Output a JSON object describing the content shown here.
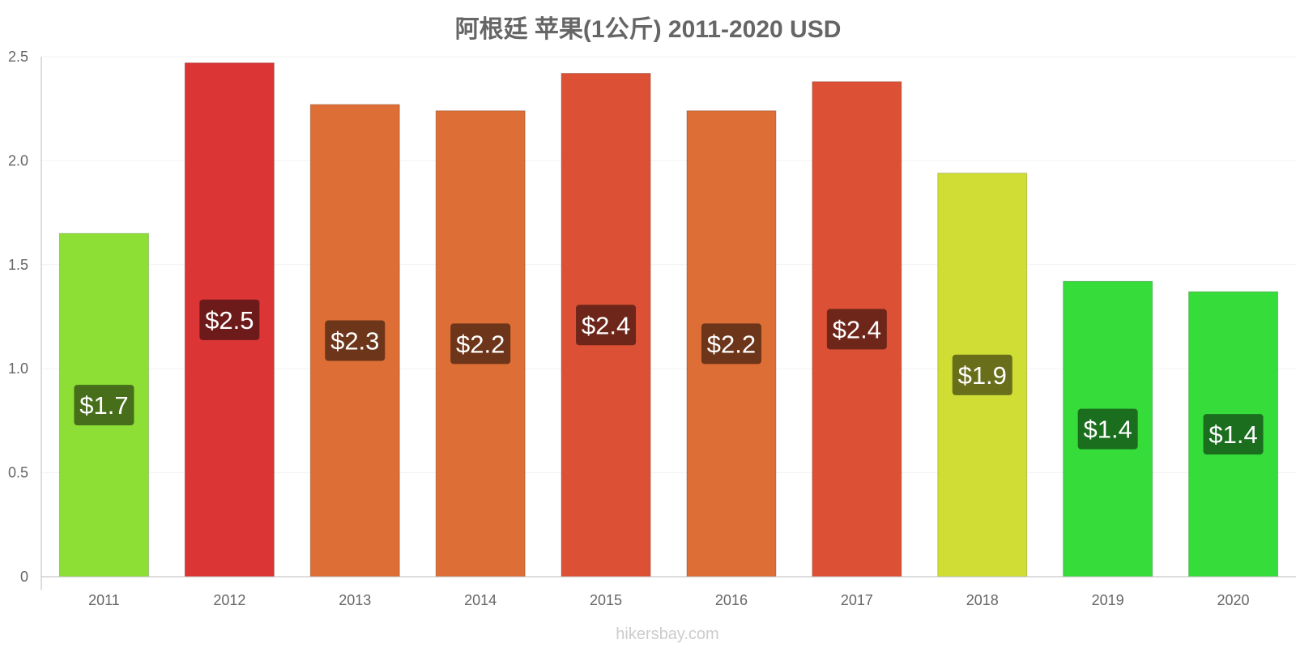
{
  "chart_data": {
    "type": "bar",
    "title": "阿根廷 苹果(1公斤) 2011-2020 USD",
    "categories": [
      "2011",
      "2012",
      "2013",
      "2014",
      "2015",
      "2016",
      "2017",
      "2018",
      "2019",
      "2020"
    ],
    "values": [
      1.65,
      2.47,
      2.27,
      2.24,
      2.42,
      2.24,
      2.38,
      1.94,
      1.42,
      1.37
    ],
    "labels": [
      "$1.7",
      "$2.5",
      "$2.3",
      "$2.2",
      "$2.4",
      "$2.2",
      "$2.4",
      "$1.9",
      "$1.4",
      "$1.4"
    ],
    "bar_colors": [
      "#8ddf35",
      "#db3535",
      "#dd6e35",
      "#dd6e35",
      "#dc5135",
      "#dd6e35",
      "#dc5135",
      "#cfdd35",
      "#35dc3a",
      "#35dc3a"
    ],
    "label_bg_colors": [
      "#476e1a",
      "#6d1a1a",
      "#6d351a",
      "#6d351a",
      "#6e261a",
      "#6d351a",
      "#6e261a",
      "#686e1a",
      "#1a6e1d",
      "#1a6e1d"
    ],
    "y_ticks": [
      "0",
      "0.5",
      "1.0",
      "1.5",
      "2.0",
      "2.5"
    ],
    "ylim": [
      0,
      2.5
    ],
    "xlabel": "",
    "ylabel": "",
    "grid": true,
    "source": "hikersbay.com"
  }
}
